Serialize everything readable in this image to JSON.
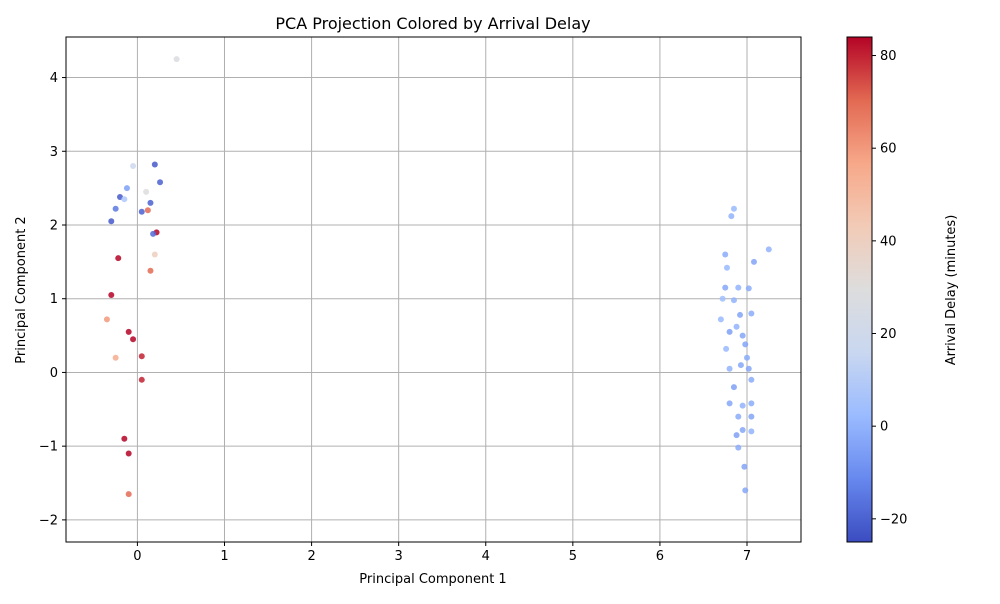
{
  "chart_data": {
    "type": "scatter",
    "title": "PCA Projection Colored by Arrival Delay",
    "xlabel": "Principal Component 1",
    "ylabel": "Principal Component 2",
    "xlim": [
      -0.82,
      7.62
    ],
    "ylim": [
      -2.3,
      4.55
    ],
    "xticks": [
      0,
      1,
      2,
      3,
      4,
      5,
      6,
      7
    ],
    "yticks": [
      -2,
      -1,
      0,
      1,
      2,
      3,
      4
    ],
    "grid": true,
    "colorbar": {
      "label": "Arrival Delay (minutes)",
      "range": [
        -25,
        84
      ],
      "ticks": [
        -20,
        0,
        20,
        40,
        60,
        80
      ],
      "colormap": "coolwarm",
      "colormap_stops": [
        "#3b4cc0",
        "#6788ee",
        "#9abbff",
        "#c9d7f0",
        "#dddddd",
        "#f2cbb7",
        "#f7a889",
        "#e26952",
        "#b40426"
      ]
    },
    "clusters_description_free": true,
    "series": [
      {
        "points": [
          [
            0.45,
            4.25,
            28
          ],
          [
            -0.05,
            2.8,
            18
          ],
          [
            0.2,
            2.82,
            -22
          ],
          [
            0.26,
            2.58,
            -20
          ],
          [
            0.1,
            2.45,
            30
          ],
          [
            -0.12,
            2.5,
            -5
          ],
          [
            -0.25,
            2.22,
            -15
          ],
          [
            -0.2,
            2.38,
            -22
          ],
          [
            -0.15,
            2.35,
            8
          ],
          [
            0.15,
            2.3,
            -20
          ],
          [
            0.22,
            1.9,
            84
          ],
          [
            0.18,
            1.88,
            -18
          ],
          [
            0.12,
            2.2,
            70
          ],
          [
            0.05,
            2.18,
            -20
          ],
          [
            -0.3,
            2.05,
            -22
          ],
          [
            -0.22,
            1.55,
            84
          ],
          [
            0.15,
            1.38,
            70
          ],
          [
            0.2,
            1.6,
            40
          ],
          [
            -0.3,
            1.05,
            84
          ],
          [
            -0.35,
            0.72,
            60
          ],
          [
            -0.1,
            0.55,
            84
          ],
          [
            -0.05,
            0.45,
            84
          ],
          [
            0.05,
            0.22,
            80
          ],
          [
            -0.15,
            -0.9,
            84
          ],
          [
            -0.1,
            -1.1,
            84
          ],
          [
            -0.1,
            -1.65,
            70
          ],
          [
            0.05,
            -0.1,
            80
          ],
          [
            -0.25,
            0.2,
            55
          ],
          [
            6.85,
            2.22,
            2
          ],
          [
            6.82,
            2.12,
            0
          ],
          [
            7.25,
            1.67,
            0
          ],
          [
            6.75,
            1.6,
            -2
          ],
          [
            7.08,
            1.5,
            -4
          ],
          [
            6.77,
            1.42,
            2
          ],
          [
            6.75,
            1.15,
            -3
          ],
          [
            6.9,
            1.15,
            0
          ],
          [
            7.02,
            1.14,
            -2
          ],
          [
            6.72,
            1.0,
            4
          ],
          [
            6.85,
            0.98,
            0
          ],
          [
            6.92,
            0.78,
            -4
          ],
          [
            7.05,
            0.8,
            -2
          ],
          [
            6.7,
            0.72,
            2
          ],
          [
            6.8,
            0.55,
            -5
          ],
          [
            6.88,
            0.62,
            0
          ],
          [
            6.95,
            0.5,
            -3
          ],
          [
            6.76,
            0.32,
            2
          ],
          [
            6.98,
            0.38,
            -4
          ],
          [
            7.0,
            0.2,
            -2
          ],
          [
            6.8,
            0.05,
            0
          ],
          [
            7.02,
            0.05,
            -3
          ],
          [
            6.85,
            -0.2,
            -5
          ],
          [
            7.05,
            -0.1,
            -2
          ],
          [
            6.8,
            -0.42,
            -3
          ],
          [
            6.95,
            -0.45,
            0
          ],
          [
            7.05,
            -0.6,
            -4
          ],
          [
            6.9,
            -0.6,
            -2
          ],
          [
            6.95,
            -0.78,
            -3
          ],
          [
            7.05,
            -0.8,
            0
          ],
          [
            6.88,
            -0.85,
            -5
          ],
          [
            6.9,
            -1.02,
            -2
          ],
          [
            6.97,
            -1.28,
            -4
          ],
          [
            6.98,
            -1.6,
            -3
          ],
          [
            7.05,
            -0.42,
            -2
          ],
          [
            6.93,
            0.1,
            -3
          ]
        ]
      }
    ]
  }
}
